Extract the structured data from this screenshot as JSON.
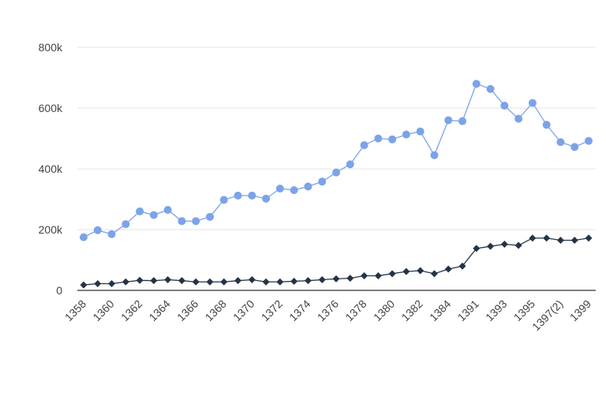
{
  "chart_data": {
    "type": "line",
    "title": "",
    "xlabel": "",
    "ylabel": "",
    "ylim": [
      0,
      800000
    ],
    "y_ticks": [
      0,
      200000,
      400000,
      600000,
      800000
    ],
    "y_tick_labels": [
      "0",
      "200k",
      "400k",
      "600k",
      "800k"
    ],
    "grid": true,
    "legend": "none",
    "categories": [
      "1358",
      "1359",
      "1360",
      "1361",
      "1362",
      "1363",
      "1364",
      "1365",
      "1366",
      "1367",
      "1368",
      "1369",
      "1370",
      "1371",
      "1372",
      "1373",
      "1374",
      "1375",
      "1376",
      "1377",
      "1378",
      "1379",
      "1380",
      "1381",
      "1382",
      "1383",
      "1384",
      "1385",
      "1391",
      "1392",
      "1393",
      "1394",
      "1395",
      "1396",
      "1397(2)",
      "1398",
      "1399"
    ],
    "x_tick_labels": [
      "1358",
      "1360",
      "1362",
      "1364",
      "1366",
      "1368",
      "1370",
      "1372",
      "1374",
      "1376",
      "1378",
      "1380",
      "1382",
      "1384",
      "1391",
      "1393",
      "1395",
      "1397(2)",
      "1399"
    ],
    "series": [
      {
        "color": "#7ba3e8",
        "marker": "circle",
        "values": [
          175000,
          198000,
          185000,
          218000,
          260000,
          248000,
          265000,
          228000,
          228000,
          242000,
          298000,
          312000,
          312000,
          302000,
          335000,
          330000,
          342000,
          358000,
          388000,
          415000,
          478000,
          500000,
          497000,
          513000,
          523000,
          445000,
          560000,
          557000,
          680000,
          663000,
          608000,
          565000,
          617000,
          545000,
          488000,
          472000,
          492000
        ]
      },
      {
        "color": "#243447",
        "marker": "diamond",
        "values": [
          18000,
          22000,
          22000,
          28000,
          33000,
          32000,
          35000,
          32000,
          28000,
          28000,
          28000,
          32000,
          35000,
          28000,
          28000,
          30000,
          32000,
          35000,
          38000,
          40000,
          48000,
          48000,
          55000,
          62000,
          65000,
          55000,
          70000,
          80000,
          138000,
          145000,
          152000,
          148000,
          172000,
          172000,
          165000,
          165000,
          172000
        ]
      }
    ]
  }
}
